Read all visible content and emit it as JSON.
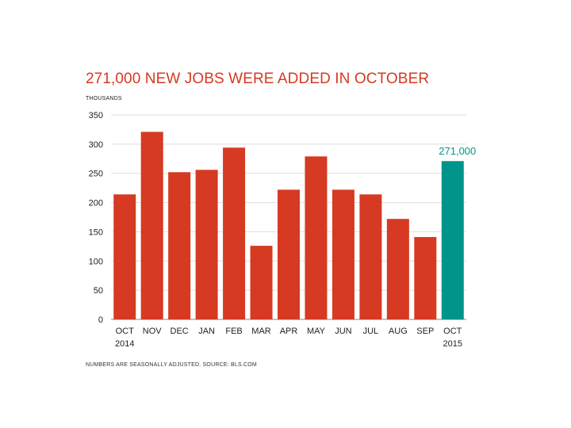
{
  "chart_data": {
    "type": "bar",
    "title": "271,000 NEW JOBS WERE ADDED IN OCTOBER",
    "ylabel": "THOUSANDS",
    "xlabel": "",
    "categories": [
      "OCT",
      "NOV",
      "DEC",
      "JAN",
      "FEB",
      "MAR",
      "APR",
      "MAY",
      "JUN",
      "JUL",
      "AUG",
      "SEP",
      "OCT"
    ],
    "category_sublabels": [
      "2014",
      "",
      "",
      "",
      "",
      "",
      "",
      "",
      "",
      "",
      "",
      "",
      "2015"
    ],
    "values": [
      214,
      321,
      252,
      256,
      294,
      126,
      222,
      279,
      222,
      214,
      172,
      141,
      271
    ],
    "ylim": [
      0,
      350
    ],
    "yticks": [
      0,
      50,
      100,
      150,
      200,
      250,
      300,
      350
    ],
    "grid": true,
    "highlight_index": 12,
    "annotations": [
      {
        "index": 12,
        "text": "271,000"
      }
    ],
    "colors": {
      "bar": "#d63a22",
      "highlight": "#00958a",
      "grid": "#dddddd",
      "title": "#d63a22"
    }
  },
  "footnote": "NUMBERS ARE SEASONALLY ADJUSTED. SOURCE: BLS.COM"
}
